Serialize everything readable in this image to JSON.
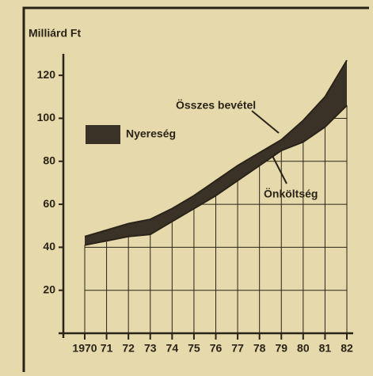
{
  "chart_data": {
    "type": "band",
    "title": "Milliárd Ft",
    "categories": [
      "1970",
      "71",
      "72",
      "73",
      "74",
      "75",
      "76",
      "77",
      "78",
      "79",
      "80",
      "81",
      "82"
    ],
    "series": [
      {
        "name": "Összes bevétel",
        "color": "#2a2418",
        "values": [
          45,
          48,
          51,
          53,
          58,
          64,
          71,
          78,
          84,
          90,
          99,
          110,
          127
        ]
      },
      {
        "name": "Önköltség",
        "color": "#2a2418",
        "values": [
          41,
          43,
          45,
          46,
          52,
          58,
          64,
          71,
          78,
          85,
          89,
          96,
          106
        ]
      }
    ],
    "fill_label": "Nyereség",
    "fill_color": "#3a3226",
    "ylim": [
      0,
      130
    ],
    "yticks": [
      20,
      40,
      60,
      80,
      100,
      120
    ],
    "grid": true
  }
}
